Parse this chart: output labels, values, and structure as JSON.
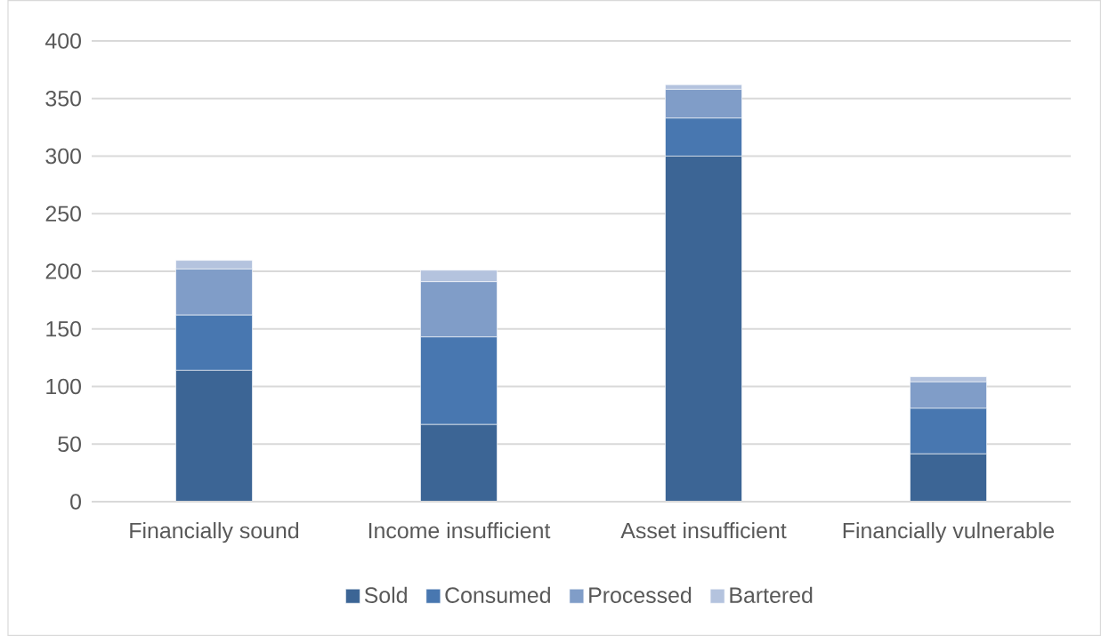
{
  "chart_data": {
    "type": "bar",
    "stacked": true,
    "categories": [
      "Financially sound",
      "Income insufficient",
      "Asset insufficient",
      "Financially vulnerable"
    ],
    "series": [
      {
        "name": "Sold",
        "color": "#3c6595",
        "values": [
          114,
          67,
          300,
          41.5
        ]
      },
      {
        "name": "Consumed",
        "color": "#4877b0",
        "values": [
          48,
          76,
          33,
          39.5
        ]
      },
      {
        "name": "Processed",
        "color": "#809dc8",
        "values": [
          40,
          48,
          25,
          23
        ]
      },
      {
        "name": "Bartered",
        "color": "#b4c3de",
        "values": [
          7.5,
          10,
          4,
          4.5
        ]
      }
    ],
    "ylim": [
      0,
      400
    ],
    "yticks": [
      0,
      50,
      100,
      150,
      200,
      250,
      300,
      350,
      400
    ],
    "grid": "y",
    "legend": "bottom"
  }
}
